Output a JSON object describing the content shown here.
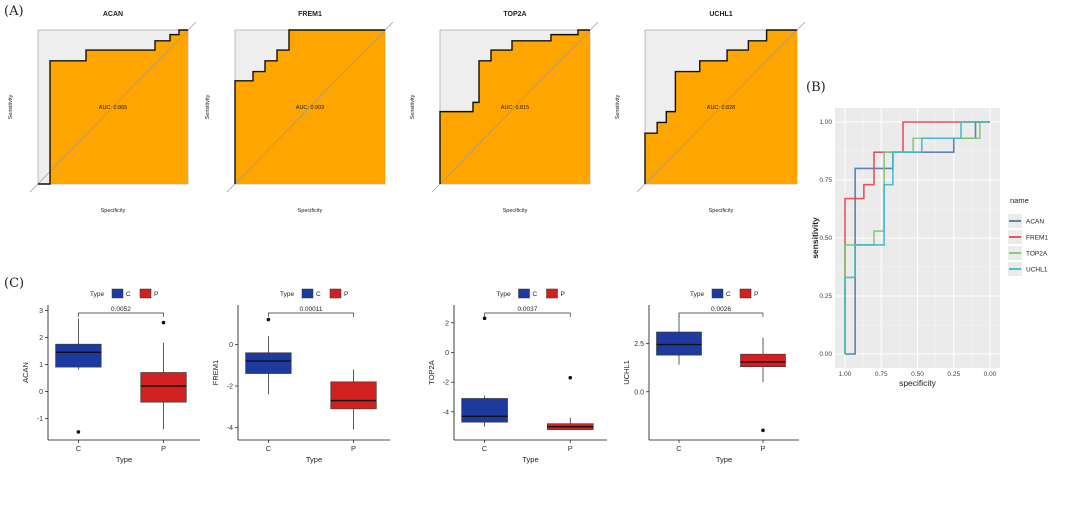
{
  "panel_labels": {
    "a": "(A)",
    "b": "(B)",
    "c": "(C)"
  },
  "colors": {
    "auc_fill": "#FFA500",
    "box_c": "#1F3A9E",
    "box_p": "#D21F1F",
    "panel_bg": "#EBEBEB",
    "roc_acan": "#4E79A7",
    "roc_frem1": "#E8444C",
    "roc_top2a": "#7BC96F",
    "roc_uchl1": "#3FB8C8"
  },
  "chart_data": [
    {
      "id": "roc-acan",
      "type": "line",
      "title": "ACAN",
      "xlabel": "Specificity",
      "ylabel": "Sensitivity",
      "auc_label": "AUC: 0.865",
      "x": [
        0,
        0.08,
        0.08,
        0.32,
        0.32,
        0.78,
        0.78,
        0.88,
        0.88,
        0.94,
        0.94,
        1
      ],
      "y": [
        0,
        0,
        0.8,
        0.8,
        0.87,
        0.87,
        0.93,
        0.93,
        0.97,
        0.97,
        1,
        1
      ]
    },
    {
      "id": "roc-frem1",
      "type": "line",
      "title": "FREM1",
      "xlabel": "Specificity",
      "ylabel": "Sensitivity",
      "auc_label": "AUC: 0.903",
      "x": [
        0,
        0,
        0.12,
        0.12,
        0.2,
        0.2,
        0.28,
        0.28,
        0.36,
        0.36,
        1
      ],
      "y": [
        0,
        0.67,
        0.67,
        0.73,
        0.73,
        0.8,
        0.8,
        0.87,
        0.87,
        1,
        1
      ]
    },
    {
      "id": "roc-top2a",
      "type": "line",
      "title": "TOP2A",
      "xlabel": "Specificity",
      "ylabel": "Sensitivity",
      "auc_label": "AUC: 0.815",
      "x": [
        0,
        0,
        0.22,
        0.22,
        0.26,
        0.26,
        0.34,
        0.34,
        0.48,
        0.48,
        0.74,
        0.74,
        0.92,
        0.92,
        1
      ],
      "y": [
        0,
        0.47,
        0.47,
        0.53,
        0.53,
        0.8,
        0.8,
        0.87,
        0.87,
        0.93,
        0.93,
        0.97,
        0.97,
        1,
        1
      ]
    },
    {
      "id": "roc-uchl1",
      "type": "line",
      "title": "UCHL1",
      "xlabel": "Specificity",
      "ylabel": "Sensitivity",
      "auc_label": "AUC: 0.828",
      "x": [
        0,
        0,
        0.08,
        0.08,
        0.14,
        0.14,
        0.2,
        0.2,
        0.36,
        0.36,
        0.54,
        0.54,
        0.68,
        0.68,
        0.8,
        0.8,
        1
      ],
      "y": [
        0,
        0.33,
        0.33,
        0.4,
        0.4,
        0.47,
        0.47,
        0.73,
        0.73,
        0.8,
        0.8,
        0.87,
        0.87,
        0.93,
        0.93,
        1,
        1
      ]
    },
    {
      "id": "roc-combined",
      "type": "line",
      "xlabel": "specificity",
      "ylabel": "sensitivity",
      "legend_title": "name",
      "legend_position": "right",
      "xticks": [
        "1.00",
        "0.75",
        "0.50",
        "0.25",
        "0.00"
      ],
      "yticks": [
        "0.00",
        "0.25",
        "0.50",
        "0.75",
        "1.00"
      ],
      "xlim": [
        1,
        0
      ],
      "ylim": [
        0,
        1
      ],
      "grid": true,
      "series": [
        {
          "name": "ACAN",
          "x": [
            1,
            0.93,
            0.93,
            0.93,
            0.93,
            0.67,
            0.67,
            0.25,
            0.25,
            0.1,
            0.1,
            0
          ],
          "y": [
            0,
            0,
            0.33,
            0.33,
            0.8,
            0.8,
            0.87,
            0.87,
            0.93,
            0.93,
            1,
            1
          ]
        },
        {
          "name": "FREM1",
          "x": [
            1,
            1,
            0.93,
            0.93,
            0.87,
            0.87,
            0.8,
            0.8,
            0.73,
            0.73,
            0.6,
            0.6,
            0
          ],
          "y": [
            0,
            0.67,
            0.67,
            0.67,
            0.67,
            0.73,
            0.73,
            0.87,
            0.87,
            0.87,
            0.87,
            1,
            1
          ]
        },
        {
          "name": "TOP2A",
          "x": [
            1,
            1,
            0.93,
            0.93,
            0.8,
            0.8,
            0.73,
            0.73,
            0.53,
            0.53,
            0.27,
            0.27,
            0.07,
            0.07,
            0
          ],
          "y": [
            0,
            0.47,
            0.47,
            0.47,
            0.47,
            0.53,
            0.53,
            0.87,
            0.87,
            0.93,
            0.93,
            0.93,
            0.93,
            1,
            1
          ]
        },
        {
          "name": "UCHL1",
          "x": [
            1,
            1,
            0.93,
            0.93,
            0.87,
            0.87,
            0.73,
            0.73,
            0.67,
            0.67,
            0.47,
            0.47,
            0.2,
            0.2,
            0
          ],
          "y": [
            0,
            0.33,
            0.33,
            0.47,
            0.47,
            0.47,
            0.47,
            0.73,
            0.73,
            0.87,
            0.87,
            0.93,
            0.93,
            1,
            1
          ]
        }
      ]
    },
    {
      "id": "box-acan",
      "type": "box",
      "ylabel": "ACAN",
      "xlabel": "Type",
      "legend_title": "Type",
      "legend_labels": [
        "C",
        "P"
      ],
      "categories": [
        "C",
        "P"
      ],
      "p_value": "0.0052",
      "ylim": [
        -1.8,
        3.2
      ],
      "yticks": [
        -1,
        0,
        1,
        2,
        3
      ],
      "boxes": [
        {
          "category": "C",
          "min": 0.8,
          "q1": 0.9,
          "median": 1.45,
          "q3": 1.75,
          "max": 2.7,
          "outliers": [
            -1.5
          ]
        },
        {
          "category": "P",
          "min": -1.4,
          "q1": -0.4,
          "median": 0.2,
          "q3": 0.7,
          "max": 1.8,
          "outliers": [
            2.55
          ]
        }
      ]
    },
    {
      "id": "box-frem1",
      "type": "box",
      "ylabel": "FREM1",
      "xlabel": "Type",
      "legend_title": "Type",
      "legend_labels": [
        "C",
        "P"
      ],
      "categories": [
        "C",
        "P"
      ],
      "p_value": "0.00011",
      "ylim": [
        -4.6,
        1.9
      ],
      "yticks": [
        -4,
        -2,
        0
      ],
      "boxes": [
        {
          "category": "C",
          "min": -2.4,
          "q1": -1.4,
          "median": -0.8,
          "q3": -0.4,
          "max": 0.4,
          "outliers": [
            1.2
          ]
        },
        {
          "category": "P",
          "min": -4.1,
          "q1": -3.1,
          "median": -2.7,
          "q3": -1.8,
          "max": -1.2,
          "outliers": []
        }
      ]
    },
    {
      "id": "box-top2a",
      "type": "box",
      "ylabel": "TOP2A",
      "xlabel": "Type",
      "legend_title": "Type",
      "legend_labels": [
        "C",
        "P"
      ],
      "categories": [
        "C",
        "P"
      ],
      "p_value": "0.0037",
      "ylim": [
        -5.9,
        3.2
      ],
      "yticks": [
        -4,
        -2,
        0,
        2
      ],
      "boxes": [
        {
          "category": "C",
          "min": -5.0,
          "q1": -4.7,
          "median": -4.3,
          "q3": -3.1,
          "max": -2.9,
          "outliers": [
            2.3
          ]
        },
        {
          "category": "P",
          "min": -5.2,
          "q1": -5.2,
          "median": -5.0,
          "q3": -4.8,
          "max": -4.4,
          "outliers": [
            -1.7
          ]
        }
      ]
    },
    {
      "id": "box-uchl1",
      "type": "box",
      "ylabel": "UCHL1",
      "xlabel": "Type",
      "legend_title": "Type",
      "legend_labels": [
        "C",
        "P"
      ],
      "categories": [
        "C",
        "P"
      ],
      "p_value": "0.0026",
      "ylim": [
        -2.5,
        4.5
      ],
      "yticks": [
        0.0,
        2.5
      ],
      "ytick_labels": [
        "0.0",
        "2.5"
      ],
      "boxes": [
        {
          "category": "C",
          "min": 1.4,
          "q1": 1.9,
          "median": 2.45,
          "q3": 3.1,
          "max": 4.0,
          "outliers": []
        },
        {
          "category": "P",
          "min": 0.5,
          "q1": 1.3,
          "median": 1.55,
          "q3": 1.95,
          "max": 2.8,
          "outliers": [
            -2.0
          ]
        }
      ]
    }
  ]
}
